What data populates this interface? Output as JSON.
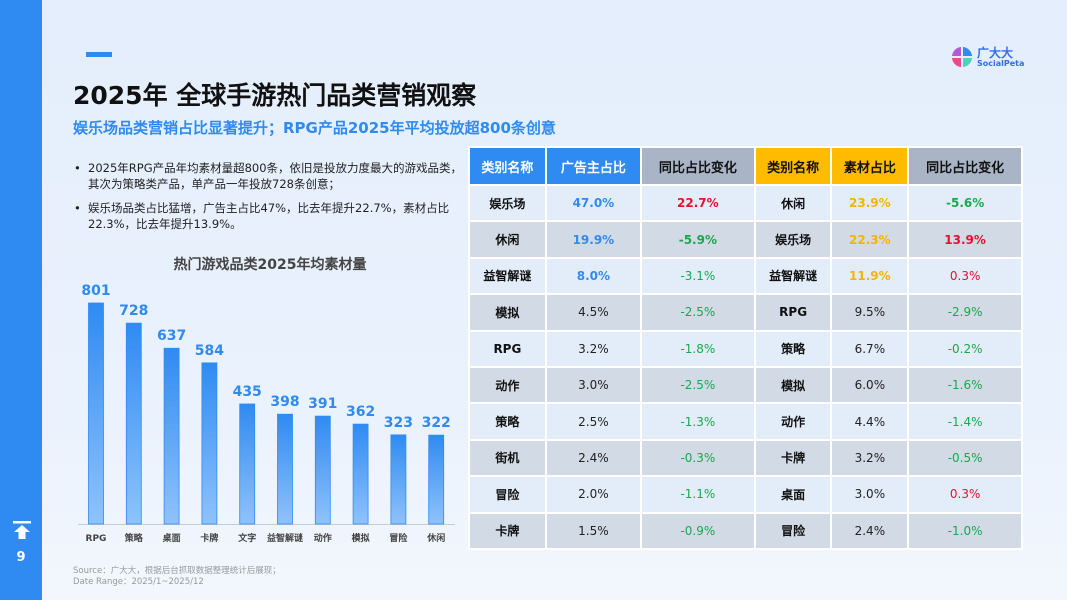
{
  "page": {
    "title": "2025年 全球手游热门品类营销观察",
    "subtitle": "娱乐场品类营销占比显著提升；RPG产品2025年平均投放超800条创意",
    "page_number": "9"
  },
  "logo": {
    "name": "广大大",
    "sub": "SocialPeta"
  },
  "bullets": [
    "2025年RPG产品年均素材量超800条，依旧是投放力度最大的游戏品类，其次为策略类产品，单产品一年投放728条创意；",
    "娱乐场品类占比猛增，广告主占比47%，比去年提升22.7%，素材占比22.3%，比去年提升13.9%。"
  ],
  "chart_data": {
    "type": "bar",
    "title": "热门游戏品类2025年均素材量",
    "categories": [
      "RPG",
      "策略",
      "桌面",
      "卡牌",
      "文字",
      "益智解谜",
      "动作",
      "模拟",
      "冒险",
      "休闲"
    ],
    "values": [
      801,
      728,
      637,
      584,
      435,
      398,
      391,
      362,
      323,
      322
    ],
    "ylim": [
      0,
      801
    ],
    "color": "#2f8bf2",
    "grid": false
  },
  "table": {
    "headers": [
      "类别名称",
      "广告主占比",
      "同比占比变化",
      "类别名称",
      "素材占比",
      "同比占比变化"
    ],
    "rows": [
      [
        "娱乐场",
        "47.0%",
        "22.7%",
        "休闲",
        "23.9%",
        "-5.6%"
      ],
      [
        "休闲",
        "19.9%",
        "-5.9%",
        "娱乐场",
        "22.3%",
        "13.9%"
      ],
      [
        "益智解谜",
        "8.0%",
        "-3.1%",
        "益智解谜",
        "11.9%",
        "0.3%"
      ],
      [
        "模拟",
        "4.5%",
        "-2.5%",
        "RPG",
        "9.5%",
        "-2.9%"
      ],
      [
        "RPG",
        "3.2%",
        "-1.8%",
        "策略",
        "6.7%",
        "-0.2%"
      ],
      [
        "动作",
        "3.0%",
        "-2.5%",
        "模拟",
        "6.0%",
        "-1.6%"
      ],
      [
        "策略",
        "2.5%",
        "-1.3%",
        "动作",
        "4.4%",
        "-1.4%"
      ],
      [
        "街机",
        "2.4%",
        "-0.3%",
        "卡牌",
        "3.2%",
        "-0.5%"
      ],
      [
        "冒险",
        "2.0%",
        "-1.1%",
        "桌面",
        "3.0%",
        "0.3%"
      ],
      [
        "卡牌",
        "1.5%",
        "-0.9%",
        "冒险",
        "2.4%",
        "-1.0%"
      ]
    ]
  },
  "colors": {
    "accent": "#2f8bf2",
    "yellow": "#ffbb00",
    "positive": "#e8112d",
    "negative": "#1aa84c"
  },
  "source": {
    "line1": "Source：广大大，根据后台抓取数据整理统计后展现；",
    "line2": "Date Range：2025/1~2025/12"
  }
}
